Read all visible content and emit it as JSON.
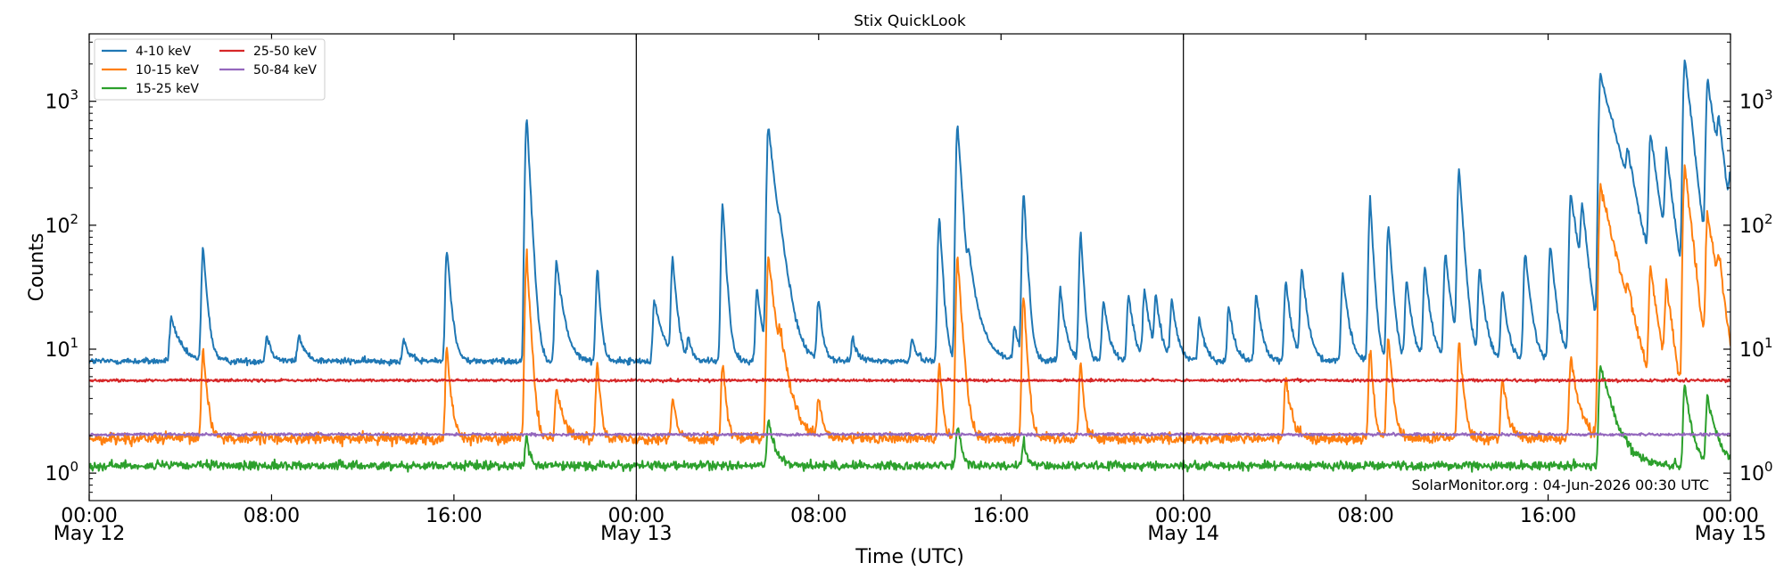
{
  "chart_data": {
    "type": "line",
    "title": "Stix QuickLook",
    "xlabel": "Time (UTC)",
    "ylabel": "Counts",
    "y_scale": "log",
    "ylim": [
      0.6,
      3500
    ],
    "x_unit": "hours since May 12 00:00 UTC",
    "xlim": [
      0,
      72
    ],
    "x_ticks": [
      {
        "value": 0,
        "label": "00:00",
        "date": "May 12"
      },
      {
        "value": 8,
        "label": "08:00",
        "date": ""
      },
      {
        "value": 16,
        "label": "16:00",
        "date": ""
      },
      {
        "value": 24,
        "label": "00:00",
        "date": "May 13"
      },
      {
        "value": 32,
        "label": "08:00",
        "date": ""
      },
      {
        "value": 40,
        "label": "16:00",
        "date": ""
      },
      {
        "value": 48,
        "label": "00:00",
        "date": "May 14"
      },
      {
        "value": 56,
        "label": "08:00",
        "date": ""
      },
      {
        "value": 64,
        "label": "16:00",
        "date": ""
      },
      {
        "value": 72,
        "label": "00:00",
        "date": "May 15"
      }
    ],
    "y_ticks": [
      {
        "value": 1,
        "base": "10",
        "exp": "0"
      },
      {
        "value": 10,
        "base": "10",
        "exp": "1"
      },
      {
        "value": 100,
        "base": "10",
        "exp": "2"
      },
      {
        "value": 1000,
        "base": "10",
        "exp": "3"
      }
    ],
    "day_separators": [
      24,
      48
    ],
    "grid": false,
    "legend_position": "top-left",
    "legend_columns": 2,
    "annotation": "SolarMonitor.org : 04-Jun-2026 00:30 UTC",
    "series": [
      {
        "name": "4-10 keV",
        "color": "#1f77b4",
        "base": 8,
        "noise": 0.06,
        "flares": [
          [
            3.6,
            18,
            0.35
          ],
          [
            5.0,
            65,
            0.15
          ],
          [
            7.8,
            13,
            0.2
          ],
          [
            9.2,
            13,
            0.25
          ],
          [
            13.8,
            12,
            0.2
          ],
          [
            15.7,
            65,
            0.15
          ],
          [
            19.2,
            730,
            0.12
          ],
          [
            20.5,
            50,
            0.25
          ],
          [
            22.3,
            45,
            0.12
          ],
          [
            24.8,
            25,
            0.3
          ],
          [
            25.6,
            55,
            0.15
          ],
          [
            26.3,
            12,
            0.15
          ],
          [
            27.8,
            150,
            0.12
          ],
          [
            29.3,
            30,
            0.2
          ],
          [
            29.8,
            620,
            0.25
          ],
          [
            30.3,
            35,
            0.4
          ],
          [
            32.0,
            25,
            0.15
          ],
          [
            33.5,
            12,
            0.2
          ],
          [
            36.1,
            12,
            0.2
          ],
          [
            37.3,
            120,
            0.12
          ],
          [
            38.1,
            660,
            0.15
          ],
          [
            38.6,
            40,
            0.4
          ],
          [
            40.6,
            15,
            0.2
          ],
          [
            41.0,
            185,
            0.12
          ],
          [
            42.6,
            30,
            0.2
          ],
          [
            43.5,
            85,
            0.12
          ],
          [
            44.5,
            25,
            0.2
          ],
          [
            45.6,
            28,
            0.2
          ],
          [
            46.3,
            30,
            0.2
          ],
          [
            46.8,
            25,
            0.2
          ],
          [
            47.5,
            25,
            0.2
          ],
          [
            48.7,
            18,
            0.2
          ],
          [
            50.0,
            22,
            0.2
          ],
          [
            51.2,
            28,
            0.2
          ],
          [
            52.5,
            35,
            0.2
          ],
          [
            53.2,
            45,
            0.2
          ],
          [
            55.0,
            40,
            0.2
          ],
          [
            56.2,
            160,
            0.12
          ],
          [
            57.0,
            100,
            0.15
          ],
          [
            57.8,
            35,
            0.2
          ],
          [
            58.6,
            45,
            0.2
          ],
          [
            59.5,
            60,
            0.2
          ],
          [
            60.1,
            290,
            0.15
          ],
          [
            61.0,
            45,
            0.2
          ],
          [
            62.0,
            30,
            0.2
          ],
          [
            63.0,
            60,
            0.2
          ],
          [
            64.1,
            70,
            0.2
          ],
          [
            65.0,
            180,
            0.3
          ],
          [
            65.5,
            120,
            0.2
          ],
          [
            66.3,
            1600,
            0.6
          ],
          [
            67.5,
            200,
            0.25
          ],
          [
            68.5,
            500,
            0.3
          ],
          [
            69.2,
            350,
            0.25
          ],
          [
            70.0,
            2200,
            0.25
          ],
          [
            71.0,
            1400,
            0.35
          ],
          [
            71.5,
            400,
            0.2
          ],
          [
            72.0,
            150,
            0.2
          ]
        ]
      },
      {
        "name": "10-15 keV",
        "color": "#ff7f0e",
        "base": 1.9,
        "noise": 0.1,
        "flares": [
          [
            5.0,
            10,
            0.15
          ],
          [
            15.7,
            10,
            0.15
          ],
          [
            19.2,
            60,
            0.12
          ],
          [
            20.5,
            5,
            0.25
          ],
          [
            22.3,
            8,
            0.12
          ],
          [
            25.6,
            4,
            0.15
          ],
          [
            27.8,
            8,
            0.12
          ],
          [
            29.8,
            55,
            0.25
          ],
          [
            30.3,
            8,
            0.4
          ],
          [
            32.0,
            4,
            0.15
          ],
          [
            37.3,
            8,
            0.12
          ],
          [
            38.1,
            55,
            0.15
          ],
          [
            41.0,
            28,
            0.12
          ],
          [
            43.5,
            8,
            0.12
          ],
          [
            52.5,
            6,
            0.2
          ],
          [
            56.2,
            10,
            0.12
          ],
          [
            57.0,
            12,
            0.15
          ],
          [
            60.1,
            12,
            0.15
          ],
          [
            62.0,
            6,
            0.2
          ],
          [
            65.0,
            8,
            0.3
          ],
          [
            66.3,
            200,
            0.55
          ],
          [
            67.5,
            12,
            0.25
          ],
          [
            68.5,
            40,
            0.3
          ],
          [
            69.2,
            30,
            0.25
          ],
          [
            70.0,
            300,
            0.25
          ],
          [
            71.0,
            120,
            0.35
          ],
          [
            71.5,
            30,
            0.2
          ]
        ]
      },
      {
        "name": "15-25 keV",
        "color": "#2ca02c",
        "base": 1.15,
        "noise": 0.08,
        "flares": [
          [
            19.2,
            2,
            0.12
          ],
          [
            29.8,
            2.6,
            0.25
          ],
          [
            38.1,
            2.5,
            0.15
          ],
          [
            41.0,
            1.8,
            0.12
          ],
          [
            66.3,
            7.5,
            0.5
          ],
          [
            70.0,
            5,
            0.25
          ],
          [
            71.0,
            4,
            0.35
          ]
        ]
      },
      {
        "name": "25-50 keV",
        "color": "#d62728",
        "base": 5.6,
        "noise": 0.025,
        "flares": []
      },
      {
        "name": "50-84 keV",
        "color": "#9467bd",
        "base": 2.05,
        "noise": 0.025,
        "flares": []
      }
    ]
  }
}
